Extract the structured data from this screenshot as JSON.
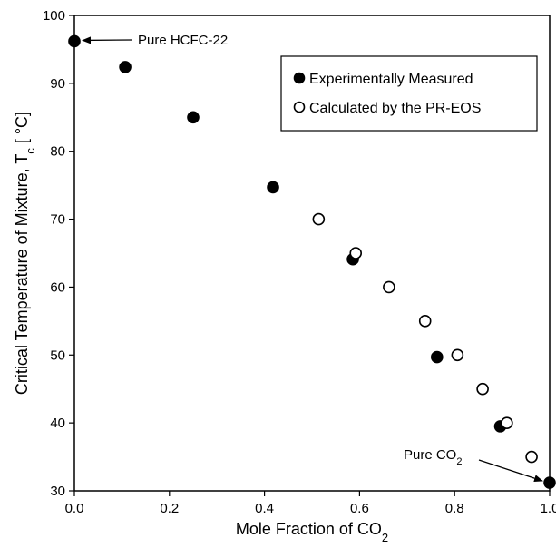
{
  "chart_data": {
    "type": "scatter",
    "xlabel": "Mole Fraction of CO",
    "xlabel_sub": "2",
    "ylabel": "Critical Temperature of Mixture, T",
    "ylabel_sub": "c",
    "ylabel_unit": " [ °C]",
    "xlim": [
      0.0,
      1.0
    ],
    "ylim": [
      30,
      100
    ],
    "x_ticks": [
      "0.0",
      "0.2",
      "0.4",
      "0.6",
      "0.8",
      "1.0"
    ],
    "y_ticks": [
      "30",
      "40",
      "50",
      "60",
      "70",
      "80",
      "90",
      "100"
    ],
    "grid": false,
    "legend_position": "top-right",
    "series": [
      {
        "name": "Experimentally Measured",
        "marker": "filled-circle",
        "color": "#000000",
        "points": [
          {
            "x": 0.0,
            "y": 96.2
          },
          {
            "x": 0.107,
            "y": 92.4
          },
          {
            "x": 0.25,
            "y": 85.0
          },
          {
            "x": 0.418,
            "y": 74.7
          },
          {
            "x": 0.586,
            "y": 64.1
          },
          {
            "x": 0.763,
            "y": 49.7
          },
          {
            "x": 0.896,
            "y": 39.5
          },
          {
            "x": 1.0,
            "y": 31.2
          }
        ]
      },
      {
        "name": "Calculated by the PR-EOS",
        "marker": "open-circle",
        "color": "#000000",
        "points": [
          {
            "x": 0.514,
            "y": 70.0
          },
          {
            "x": 0.592,
            "y": 65.0
          },
          {
            "x": 0.662,
            "y": 60.0
          },
          {
            "x": 0.738,
            "y": 55.0
          },
          {
            "x": 0.806,
            "y": 50.0
          },
          {
            "x": 0.859,
            "y": 45.0
          },
          {
            "x": 0.91,
            "y": 40.0
          },
          {
            "x": 0.962,
            "y": 35.0
          }
        ]
      }
    ],
    "annotations": [
      {
        "text": "Pure HCFC-22",
        "sub": "",
        "arrow_to": {
          "x": 0.0,
          "y": 96.2
        }
      },
      {
        "text": "Pure CO",
        "sub": "2",
        "arrow_to": {
          "x": 1.0,
          "y": 31.2
        }
      }
    ]
  }
}
